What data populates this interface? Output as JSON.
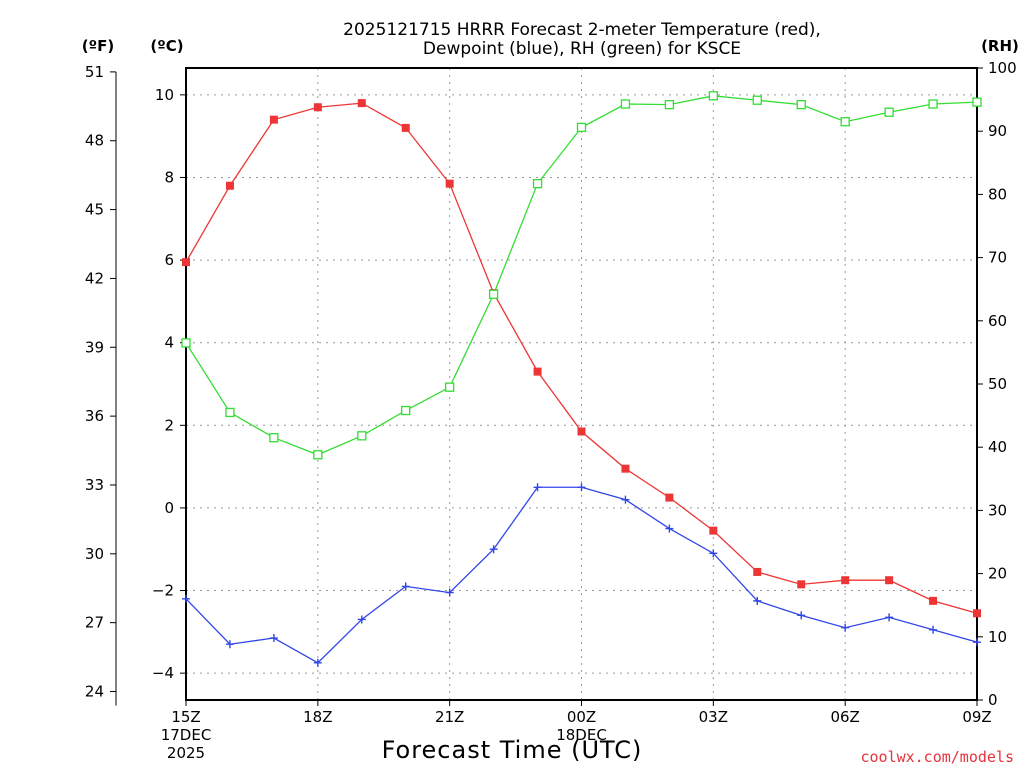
{
  "chart_data": {
    "type": "line",
    "title_lines": [
      "2025121715 HRRR Forecast 2-meter Temperature (red),",
      "Dewpoint (blue), RH (green) for KSCE"
    ],
    "xlabel": "Forecast Time (UTC)",
    "credit": "coolwx.com/models",
    "units": {
      "fahrenheit": "(ºF)",
      "celsius": "(ºC)",
      "rh": "(RH)"
    },
    "x_hours": [
      0,
      1,
      2,
      3,
      4,
      5,
      6,
      7,
      8,
      9,
      10,
      11,
      12,
      13,
      14,
      15,
      16,
      17,
      18
    ],
    "x_range": [
      0,
      18
    ],
    "x_ticks": [
      {
        "hour": 0,
        "lines": [
          "15Z",
          "17DEC",
          "2025"
        ]
      },
      {
        "hour": 3,
        "lines": [
          "18Z"
        ]
      },
      {
        "hour": 6,
        "lines": [
          "21Z"
        ]
      },
      {
        "hour": 9,
        "lines": [
          "00Z",
          "18DEC"
        ]
      },
      {
        "hour": 12,
        "lines": [
          "03Z"
        ]
      },
      {
        "hour": 15,
        "lines": [
          "06Z"
        ]
      },
      {
        "hour": 18,
        "lines": [
          "09Z"
        ]
      }
    ],
    "celsius_axis": {
      "range": [
        -4.65,
        10.65
      ],
      "ticks": [
        -4,
        -2,
        0,
        2,
        4,
        6,
        8,
        10
      ],
      "tick_labels": [
        "−4",
        "−2",
        "0",
        "2",
        "4",
        "6",
        "8",
        "10"
      ]
    },
    "fahrenheit_axis": {
      "ticks": [
        24,
        27,
        30,
        33,
        36,
        39,
        42,
        45,
        48,
        51
      ]
    },
    "rh_axis": {
      "range": [
        0,
        100
      ],
      "ticks": [
        0,
        10,
        20,
        30,
        40,
        50,
        60,
        70,
        80,
        90,
        100
      ]
    },
    "series": [
      {
        "name": "Temperature",
        "axis": "celsius",
        "color": "#ee3535",
        "marker": "filled-square",
        "values": [
          5.95,
          7.8,
          9.4,
          9.7,
          9.8,
          9.2,
          7.85,
          5.2,
          3.3,
          1.85,
          0.95,
          0.25,
          -0.55,
          -1.55,
          -1.85,
          -1.75,
          -1.75,
          -2.25,
          -2.55
        ]
      },
      {
        "name": "Dewpoint",
        "axis": "celsius",
        "color": "#3046e6",
        "marker": "plus",
        "values": [
          -2.2,
          -3.3,
          -3.15,
          -3.75,
          -2.7,
          -1.9,
          -2.05,
          -1.0,
          0.5,
          0.5,
          0.2,
          -0.5,
          -1.1,
          -2.25,
          -2.6,
          -2.9,
          -2.65,
          -2.95,
          -3.25
        ]
      },
      {
        "name": "RH",
        "axis": "rh",
        "color": "#33dd33",
        "marker": "open-square",
        "values": [
          56.5,
          45.5,
          41.5,
          38.8,
          41.8,
          45.8,
          49.5,
          64.2,
          81.7,
          90.6,
          94.3,
          94.2,
          95.6,
          94.9,
          94.2,
          91.5,
          93.0,
          94.3,
          94.6
        ]
      }
    ]
  }
}
